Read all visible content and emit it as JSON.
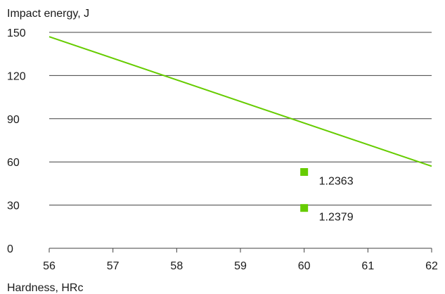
{
  "chart_data": {
    "type": "scatter",
    "title": "",
    "xlabel": "Hardness, HRc",
    "ylabel": "Impact energy, J",
    "xlim": [
      56,
      62
    ],
    "ylim": [
      0,
      150
    ],
    "x_ticks": [
      56,
      57,
      58,
      59,
      60,
      61,
      62
    ],
    "y_ticks": [
      0,
      30,
      60,
      90,
      120,
      150
    ],
    "grid": {
      "horizontal": true,
      "vertical": false
    },
    "legend": "none",
    "series": [
      {
        "type": "line",
        "x": [
          56,
          62
        ],
        "y": [
          147,
          57
        ],
        "color": "#66cc00"
      },
      {
        "type": "scatter",
        "marker": "square",
        "color": "#66cc00",
        "points": [
          {
            "x": 60,
            "y": 53,
            "label": "1.2363"
          },
          {
            "x": 60,
            "y": 28,
            "label": "1.2379"
          }
        ]
      }
    ],
    "colors": {
      "accent": "#66cc00",
      "grid": "#404040",
      "text": "#1a1a1a"
    }
  }
}
